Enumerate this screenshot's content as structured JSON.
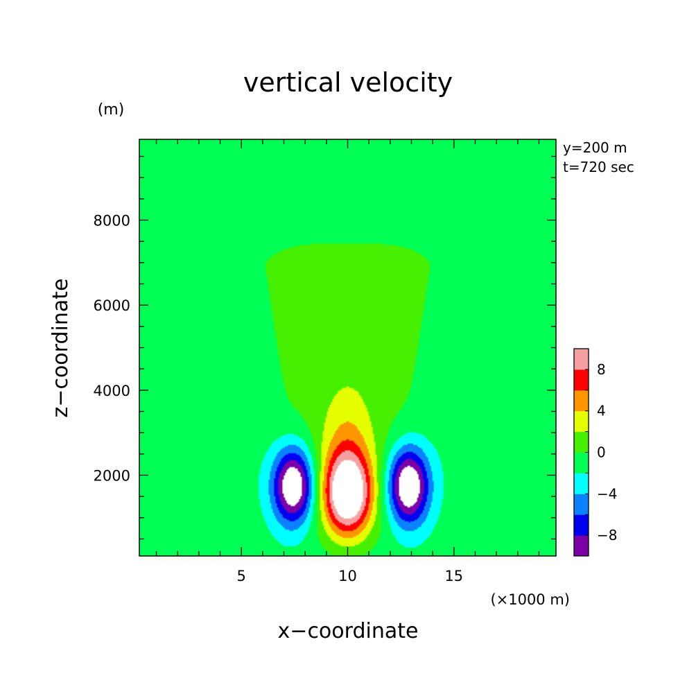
{
  "chart_data": {
    "type": "heatmap",
    "title": "vertical velocity",
    "xlabel": "x−coordinate",
    "ylabel": "z−coordinate",
    "x_unit": "(×1000 m)",
    "y_unit": "(m)",
    "info": [
      "y=200 m",
      "t=720 sec"
    ],
    "xlim": [
      0.2,
      19.8
    ],
    "ylim": [
      100,
      9900
    ],
    "x_ticks": [
      {
        "value": 5,
        "label": "5"
      },
      {
        "value": 10,
        "label": "10"
      },
      {
        "value": 15,
        "label": "15"
      }
    ],
    "y_ticks": [
      {
        "value": 2000,
        "label": "2000"
      },
      {
        "value": 4000,
        "label": "4000"
      },
      {
        "value": 6000,
        "label": "6000"
      },
      {
        "value": 8000,
        "label": "8000"
      }
    ],
    "colorbar": {
      "levels": [
        -10,
        -8,
        -6,
        -4,
        -2,
        0,
        2,
        4,
        6,
        8,
        10
      ],
      "colors": [
        "#7b00a8",
        "#0000f0",
        "#0a82ff",
        "#00ffff",
        "#00ff55",
        "#46f000",
        "#e6ff00",
        "#ff9600",
        "#ff0000",
        "#f5a0a0"
      ],
      "tick_labels": [
        {
          "value": -8,
          "label": "−8"
        },
        {
          "value": -4,
          "label": "−4"
        },
        {
          "value": 0,
          "label": "0"
        },
        {
          "value": 4,
          "label": "4"
        },
        {
          "value": 8,
          "label": "8"
        }
      ]
    },
    "field_description": "thermal bubble: central updraft near x=10, z~1500 with max >10; paired downdrafts at x~7.5 and x~13 with min <-10"
  }
}
